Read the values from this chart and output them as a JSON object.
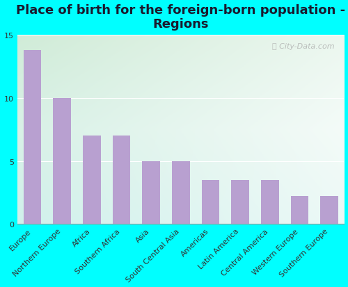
{
  "title": "Place of birth for the foreign-born population -\nRegions",
  "categories": [
    "Europe",
    "Northern Europe",
    "Africa",
    "Southern Africa",
    "Asia",
    "South Central Asia",
    "Americas",
    "Latin America",
    "Central America",
    "Western Europe",
    "Southern Europe"
  ],
  "values": [
    13.8,
    10.0,
    7.0,
    7.0,
    5.0,
    5.0,
    3.5,
    3.5,
    3.5,
    2.2,
    2.2
  ],
  "bar_color": "#b8a0d0",
  "background_color": "#00ffff",
  "gradient_top_left": "#c8e8d0",
  "gradient_white": "#ffffff",
  "gradient_bottom_right": "#c8eee8",
  "ylim": [
    0,
    15
  ],
  "yticks": [
    0,
    5,
    10,
    15
  ],
  "title_fontsize": 13,
  "tick_fontsize": 8,
  "watermark": "City-Data.com"
}
